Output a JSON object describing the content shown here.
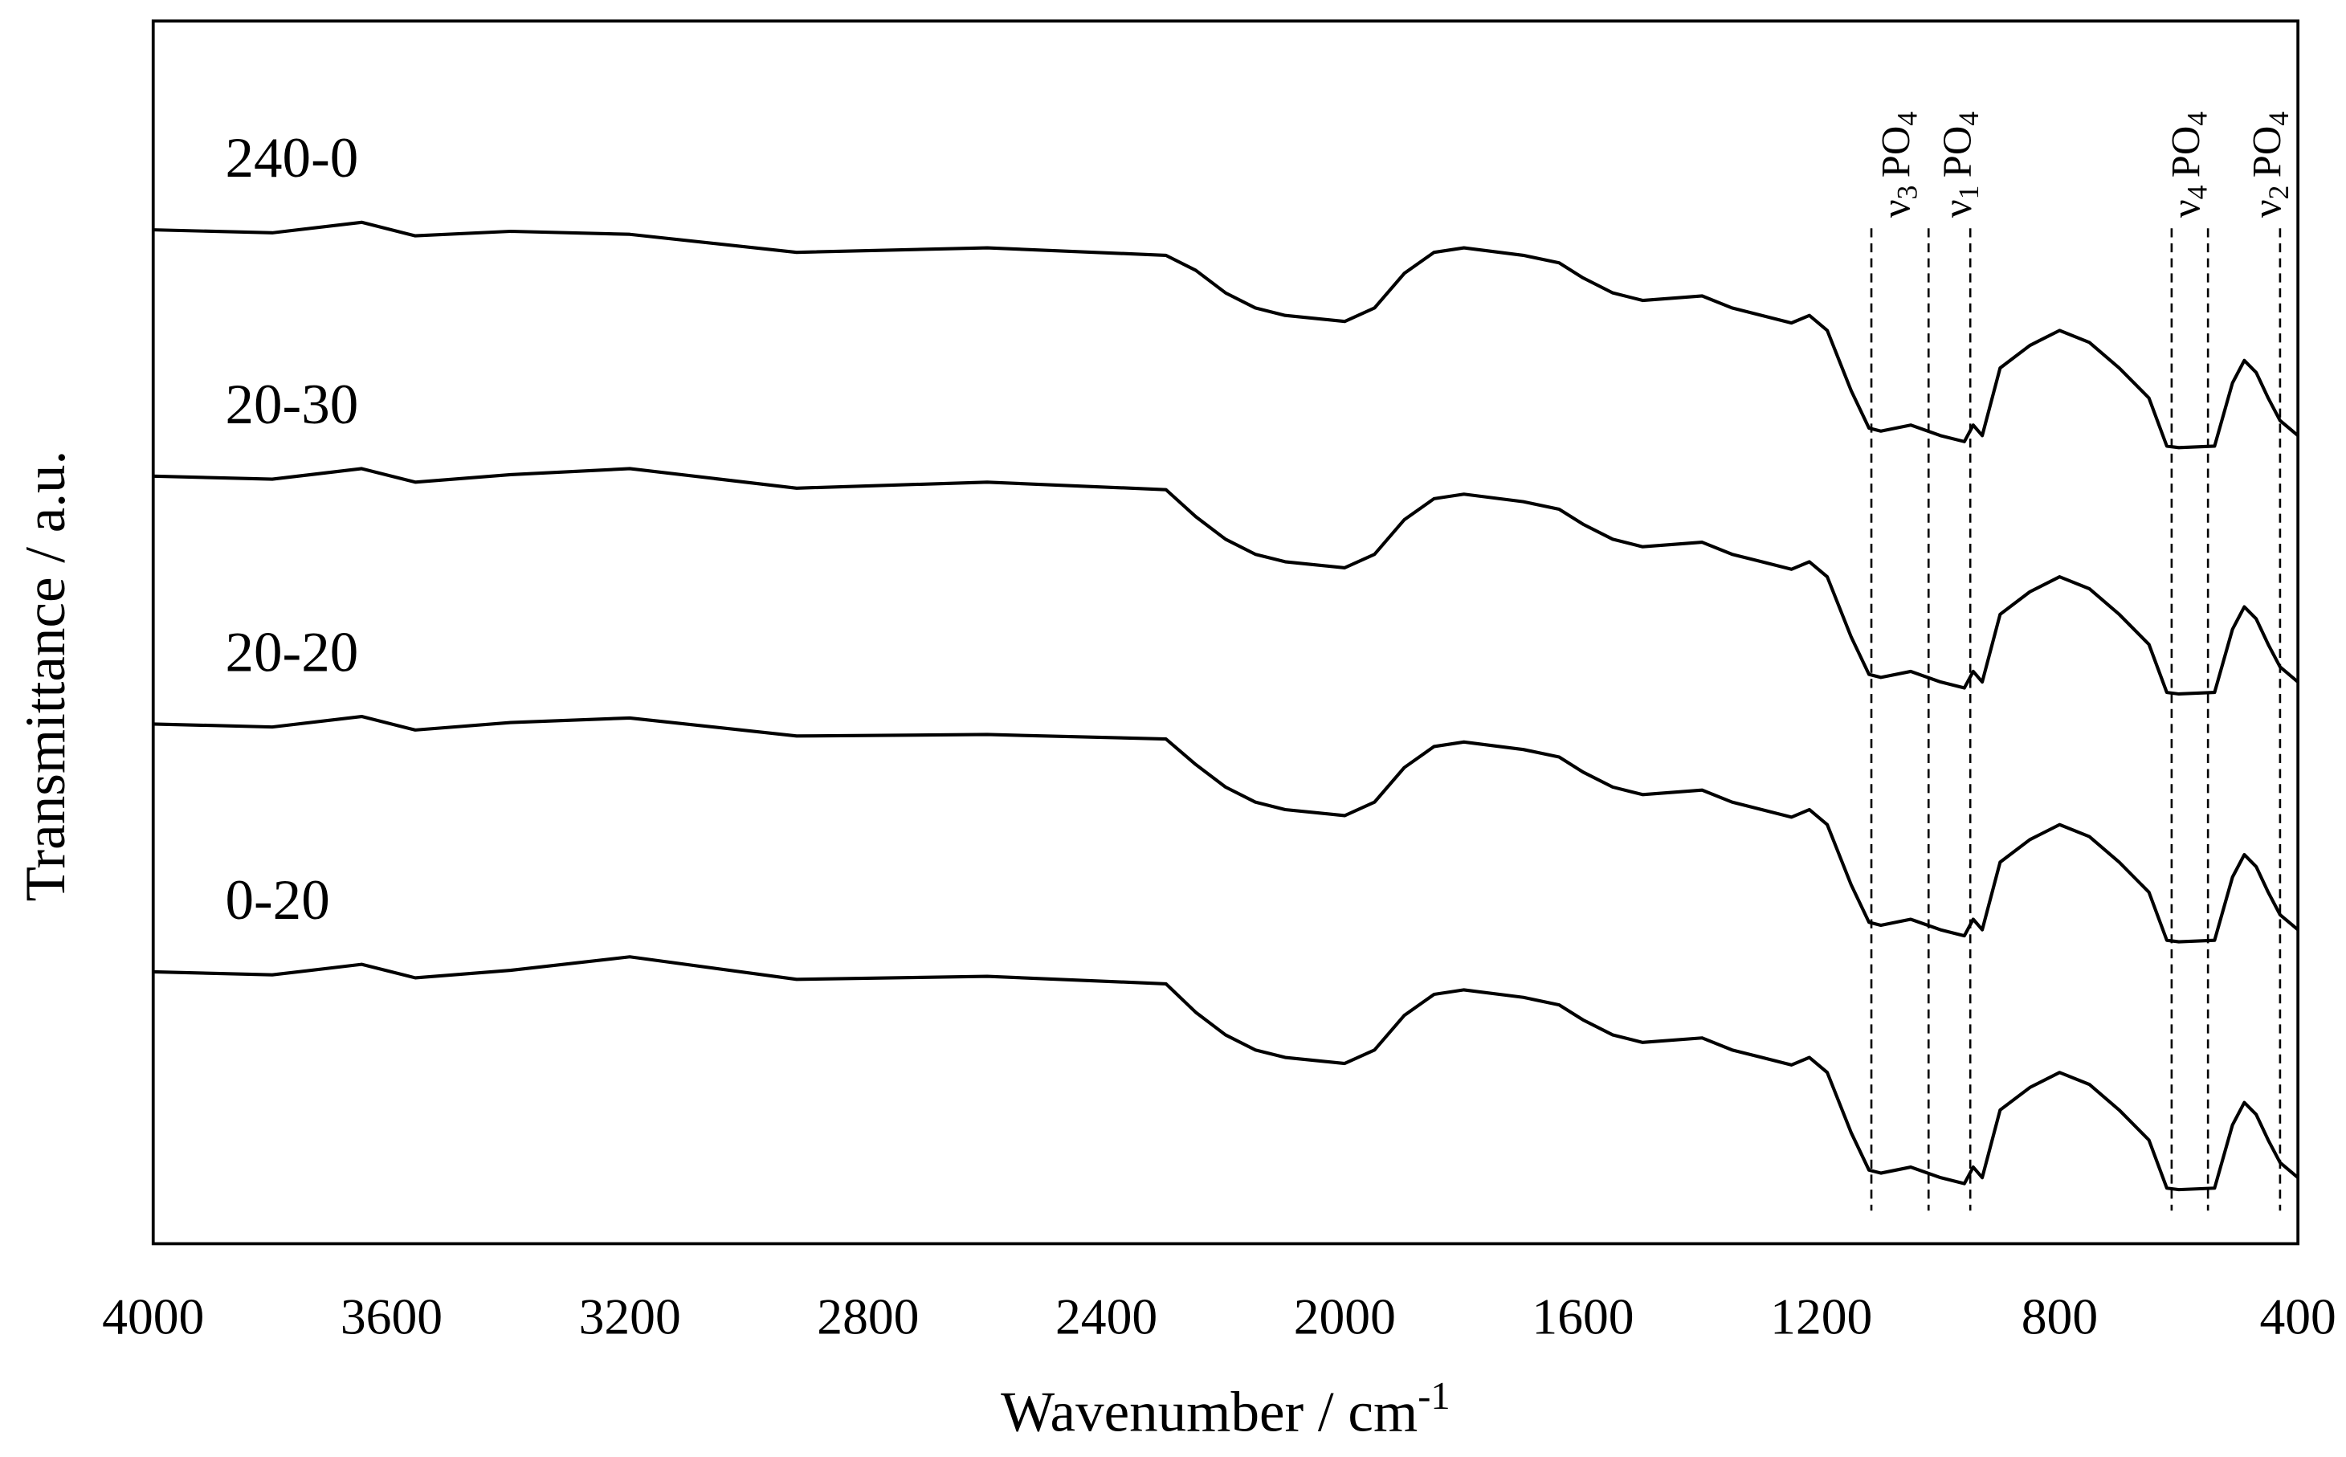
{
  "chart_data": {
    "type": "line",
    "xlabel": "Wavenumber / cm",
    "xlabel_sup": "-1",
    "ylabel": "Transmittance / a.u.",
    "xlim": [
      4000,
      400
    ],
    "xticks": [
      4000,
      3600,
      3200,
      2800,
      2400,
      2000,
      1600,
      1200,
      800,
      400
    ],
    "ylim": [
      0,
      814
    ],
    "yticks": [],
    "x": [
      4000,
      3800,
      3650,
      3560,
      3400,
      3200,
      2920,
      2600,
      2300,
      2250,
      2200,
      2150,
      2100,
      2050,
      2000,
      1950,
      1900,
      1850,
      1800,
      1700,
      1640,
      1600,
      1550,
      1500,
      1400,
      1350,
      1300,
      1250,
      1220,
      1190,
      1150,
      1120,
      1100,
      1050,
      1000,
      960,
      945,
      930,
      900,
      850,
      800,
      750,
      700,
      650,
      620,
      600,
      540,
      510,
      490,
      470,
      450,
      430,
      400
    ],
    "series": [
      {
        "name": "240-0",
        "color": "#000000",
        "values": [
          675,
          673,
          680,
          671,
          674,
          672,
          660,
          663,
          658,
          648,
          633,
          623,
          618,
          616,
          614,
          623,
          646,
          660,
          663,
          658,
          653,
          643,
          633,
          628,
          631,
          623,
          618,
          613,
          618,
          608,
          568,
          543,
          541,
          545,
          538,
          534,
          545,
          538,
          583,
          598,
          608,
          600,
          583,
          563,
          531,
          530,
          531,
          573,
          588,
          580,
          563,
          548,
          538
        ]
      },
      {
        "name": "20-30",
        "color": "#000000",
        "values": [
          511,
          509,
          516,
          507,
          512,
          516,
          503,
          507,
          502,
          484,
          469,
          459,
          454,
          452,
          450,
          459,
          482,
          496,
          499,
          494,
          489,
          479,
          469,
          464,
          467,
          459,
          454,
          449,
          454,
          444,
          404,
          379,
          377,
          381,
          374,
          370,
          381,
          374,
          419,
          434,
          444,
          436,
          419,
          399,
          367,
          366,
          367,
          409,
          424,
          416,
          399,
          384,
          374
        ]
      },
      {
        "name": "20-20",
        "color": "#000000",
        "values": [
          346,
          344,
          351,
          342,
          347,
          350,
          338,
          339,
          336,
          319,
          304,
          294,
          289,
          287,
          285,
          294,
          317,
          331,
          334,
          329,
          324,
          314,
          304,
          299,
          302,
          294,
          289,
          284,
          289,
          279,
          239,
          214,
          212,
          216,
          209,
          205,
          216,
          209,
          254,
          269,
          279,
          271,
          254,
          234,
          202,
          201,
          202,
          244,
          259,
          251,
          234,
          219,
          209
        ]
      },
      {
        "name": "0-20",
        "color": "#000000",
        "values": [
          181,
          179,
          186,
          177,
          182,
          191,
          176,
          178,
          173,
          154,
          139,
          129,
          124,
          122,
          120,
          129,
          152,
          166,
          169,
          164,
          159,
          149,
          139,
          134,
          137,
          129,
          124,
          119,
          124,
          114,
          74,
          49,
          47,
          51,
          44,
          40,
          51,
          44,
          89,
          104,
          114,
          106,
          89,
          69,
          37,
          36,
          37,
          79,
          94,
          86,
          69,
          54,
          44
        ]
      }
    ],
    "annotations": [
      {
        "symbol": "ν",
        "mode": "3",
        "group": "PO",
        "count": "4",
        "x": [
          1116,
          1020
        ]
      },
      {
        "symbol": "ν",
        "mode": "1",
        "group": "PO",
        "count": "4",
        "x": [
          950
        ]
      },
      {
        "symbol": "ν",
        "mode": "4",
        "group": "PO",
        "count": "4",
        "x": [
          612,
          551
        ]
      },
      {
        "symbol": "ν",
        "mode": "2",
        "group": "PO",
        "count": "4",
        "x": [
          430
        ]
      }
    ]
  }
}
